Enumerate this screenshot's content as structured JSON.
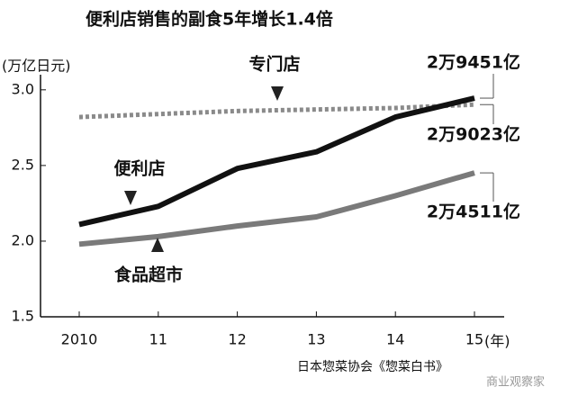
{
  "chart_data": {
    "type": "line",
    "title": "便利店销售的副食5年增长1.4倍",
    "y_label": "(万亿日元)",
    "x_unit": "(年)",
    "source": "日本惣菜协会《惣菜白书》",
    "watermark": "商业观察家",
    "categories": [
      "2010",
      "11",
      "12",
      "13",
      "14",
      "15"
    ],
    "ylim": [
      1.5,
      3.1
    ],
    "yticks": [
      1.5,
      {
        "value": 2,
        "label": "2.0"
      },
      2.5,
      {
        "value": 3,
        "label": "3.0"
      }
    ],
    "series": [
      {
        "name": "专门店",
        "color": "#8a8a8a",
        "style": "dotted",
        "values": [
          2.82,
          2.84,
          2.86,
          2.87,
          2.88,
          2.9023
        ],
        "value_labels": [
          null,
          null,
          null,
          null,
          null,
          "2万9023亿"
        ]
      },
      {
        "name": "便利店",
        "color": "#111111",
        "style": "solid",
        "values": [
          2.11,
          2.23,
          2.48,
          2.59,
          2.82,
          2.9451
        ],
        "value_labels": [
          null,
          null,
          null,
          null,
          null,
          "2万9451亿"
        ]
      },
      {
        "name": "食品超市",
        "color": "#7a7a7a",
        "style": "solid",
        "values": [
          1.98,
          2.03,
          2.1,
          2.16,
          2.3,
          2.4511
        ],
        "value_labels": [
          null,
          null,
          null,
          null,
          null,
          "2万4511亿"
        ]
      }
    ]
  }
}
